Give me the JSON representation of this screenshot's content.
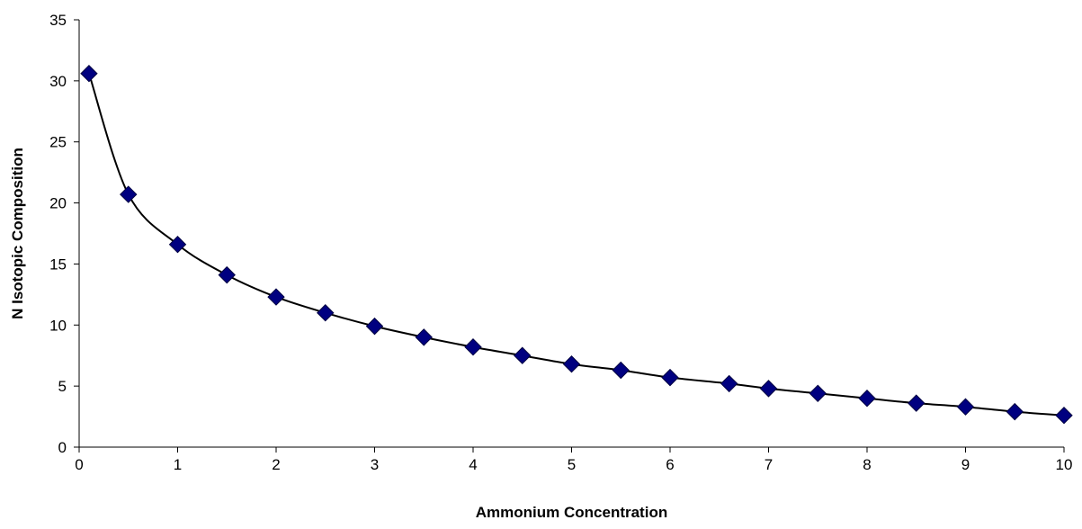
{
  "chart_data": {
    "type": "scatter",
    "title": "",
    "xlabel": "Ammonium Concentration",
    "ylabel": "N Isotopic Composition",
    "xlim": [
      0,
      10
    ],
    "ylim": [
      0,
      35
    ],
    "x_ticks": [
      0,
      1,
      2,
      3,
      4,
      5,
      6,
      7,
      8,
      9,
      10
    ],
    "y_ticks": [
      0,
      5,
      10,
      15,
      20,
      25,
      30,
      35
    ],
    "grid": false,
    "legend": "none",
    "trendline": "smooth",
    "series": [
      {
        "marker": "diamond",
        "marker_color": "#000080",
        "line_color": "#000000",
        "x": [
          0.1,
          0.5,
          1.0,
          1.5,
          2.0,
          2.5,
          3.0,
          3.5,
          4.0,
          4.5,
          5.0,
          5.5,
          6.0,
          6.6,
          7.0,
          7.5,
          8.0,
          8.5,
          9.0,
          9.5,
          10.0
        ],
        "y": [
          30.6,
          20.7,
          16.6,
          14.1,
          12.3,
          11.0,
          9.9,
          9.0,
          8.2,
          7.5,
          6.8,
          6.3,
          5.7,
          5.2,
          4.8,
          4.4,
          4.0,
          3.6,
          3.3,
          2.9,
          2.6
        ]
      }
    ]
  }
}
